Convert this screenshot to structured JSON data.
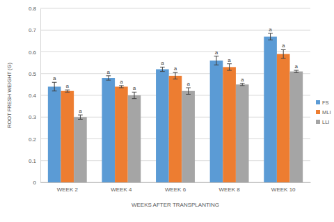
{
  "chart_data": {
    "type": "bar",
    "y_label": "ROOT FRESH WEIGHT (G)",
    "x_label": "WEEKS AFTER TRANSPLANTING",
    "categories": [
      "WEEK 2",
      "WEEK 4",
      "WEEK 6",
      "WEEK 8",
      "WEEK 10"
    ],
    "series": [
      {
        "name": "FS",
        "color": "#5b9bd5",
        "values": [
          0.44,
          0.48,
          0.52,
          0.56,
          0.67
        ],
        "errors": [
          0.02,
          0.01,
          0.01,
          0.02,
          0.015
        ],
        "annotations": [
          "a",
          "a",
          "a",
          "a",
          "a"
        ]
      },
      {
        "name": "MLI",
        "color": "#ed7d31",
        "values": [
          0.42,
          0.44,
          0.49,
          0.53,
          0.59
        ],
        "errors": [
          0.005,
          0.005,
          0.015,
          0.015,
          0.02
        ],
        "annotations": [
          "a",
          "a",
          "a",
          "a",
          "a"
        ]
      },
      {
        "name": "LLI",
        "color": "#a5a5a5",
        "values": [
          0.3,
          0.4,
          0.42,
          0.45,
          0.51
        ],
        "errors": [
          0.01,
          0.015,
          0.015,
          0.005,
          0.005
        ],
        "annotations": [
          "a",
          "a",
          "a",
          "a",
          "a"
        ]
      }
    ],
    "ylim": [
      0,
      0.8
    ],
    "yticks": [
      0,
      0.1,
      0.2,
      0.3,
      0.4,
      0.5,
      0.6,
      0.7,
      0.8
    ],
    "grid": true,
    "legend": "right"
  }
}
